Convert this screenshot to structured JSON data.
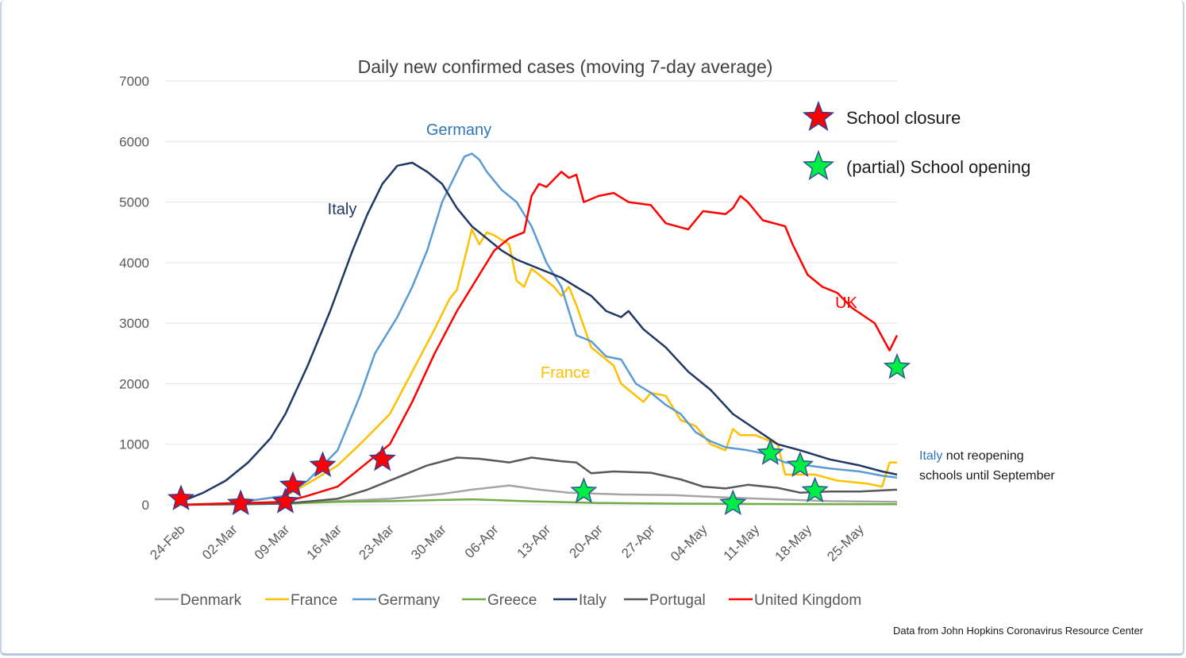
{
  "chart_data": {
    "type": "line",
    "title": "Daily new confirmed cases (moving 7-day average)",
    "ylim": [
      0,
      7000
    ],
    "yticks": [
      0,
      1000,
      2000,
      3000,
      4000,
      5000,
      6000,
      7000
    ],
    "x_start": "24-Feb",
    "x_end": "30-May",
    "xticks": [
      "24-Feb",
      "02-Mar",
      "09-Mar",
      "16-Mar",
      "23-Mar",
      "30-Mar",
      "06-Apr",
      "13-Apr",
      "20-Apr",
      "27-Apr",
      "04-May",
      "11-May",
      "18-May",
      "25-May"
    ],
    "grid": true,
    "legend_position": "bottom",
    "series": [
      {
        "name": "Denmark",
        "color": "#a5a5a5",
        "points": [
          [
            "24-Feb",
            0
          ],
          [
            "09-Mar",
            20
          ],
          [
            "16-Mar",
            60
          ],
          [
            "23-Mar",
            100
          ],
          [
            "30-Mar",
            180
          ],
          [
            "03-Apr",
            250
          ],
          [
            "08-Apr",
            320
          ],
          [
            "12-Apr",
            250
          ],
          [
            "16-Apr",
            200
          ],
          [
            "23-Apr",
            170
          ],
          [
            "30-Apr",
            160
          ],
          [
            "07-May",
            120
          ],
          [
            "14-May",
            90
          ],
          [
            "21-May",
            60
          ],
          [
            "30-May",
            50
          ]
        ]
      },
      {
        "name": "France",
        "color": "#ffc000",
        "points": [
          [
            "24-Feb",
            0
          ],
          [
            "02-Mar",
            30
          ],
          [
            "09-Mar",
            150
          ],
          [
            "12-Mar",
            350
          ],
          [
            "16-Mar",
            650
          ],
          [
            "19-Mar",
            1000
          ],
          [
            "23-Mar",
            1500
          ],
          [
            "26-Mar",
            2200
          ],
          [
            "29-Mar",
            2900
          ],
          [
            "31-Mar",
            3400
          ],
          [
            "01-Apr",
            3550
          ],
          [
            "03-Apr",
            4550
          ],
          [
            "04-Apr",
            4300
          ],
          [
            "05-Apr",
            4500
          ],
          [
            "06-Apr",
            4450
          ],
          [
            "08-Apr",
            4300
          ],
          [
            "09-Apr",
            3700
          ],
          [
            "10-Apr",
            3600
          ],
          [
            "11-Apr",
            3900
          ],
          [
            "12-Apr",
            3800
          ],
          [
            "14-Apr",
            3600
          ],
          [
            "15-Apr",
            3450
          ],
          [
            "16-Apr",
            3600
          ],
          [
            "17-Apr",
            3300
          ],
          [
            "19-Apr",
            2600
          ],
          [
            "22-Apr",
            2300
          ],
          [
            "23-Apr",
            2000
          ],
          [
            "25-Apr",
            1800
          ],
          [
            "26-Apr",
            1700
          ],
          [
            "27-Apr",
            1850
          ],
          [
            "29-Apr",
            1800
          ],
          [
            "01-May",
            1400
          ],
          [
            "03-May",
            1300
          ],
          [
            "05-May",
            1000
          ],
          [
            "07-May",
            900
          ],
          [
            "08-May",
            1250
          ],
          [
            "09-May",
            1150
          ],
          [
            "11-May",
            1150
          ],
          [
            "12-May",
            1100
          ],
          [
            "14-May",
            1000
          ],
          [
            "15-May",
            500
          ],
          [
            "16-May",
            500
          ],
          [
            "19-May",
            500
          ],
          [
            "22-May",
            400
          ],
          [
            "26-May",
            350
          ],
          [
            "28-May",
            300
          ],
          [
            "29-May",
            700
          ],
          [
            "30-May",
            700
          ]
        ]
      },
      {
        "name": "Germany",
        "color": "#5b9bd5",
        "points": [
          [
            "24-Feb",
            0
          ],
          [
            "02-Mar",
            30
          ],
          [
            "09-Mar",
            150
          ],
          [
            "12-Mar",
            400
          ],
          [
            "16-Mar",
            900
          ],
          [
            "19-Mar",
            1800
          ],
          [
            "21-Mar",
            2500
          ],
          [
            "24-Mar",
            3100
          ],
          [
            "26-Mar",
            3600
          ],
          [
            "28-Mar",
            4200
          ],
          [
            "30-Mar",
            5000
          ],
          [
            "01-Apr",
            5500
          ],
          [
            "02-Apr",
            5750
          ],
          [
            "03-Apr",
            5800
          ],
          [
            "04-Apr",
            5700
          ],
          [
            "05-Apr",
            5500
          ],
          [
            "07-Apr",
            5200
          ],
          [
            "09-Apr",
            5000
          ],
          [
            "11-Apr",
            4600
          ],
          [
            "13-Apr",
            4000
          ],
          [
            "15-Apr",
            3600
          ],
          [
            "17-Apr",
            2800
          ],
          [
            "19-Apr",
            2700
          ],
          [
            "21-Apr",
            2450
          ],
          [
            "23-Apr",
            2400
          ],
          [
            "25-Apr",
            2000
          ],
          [
            "27-Apr",
            1850
          ],
          [
            "29-Apr",
            1650
          ],
          [
            "01-May",
            1500
          ],
          [
            "03-May",
            1200
          ],
          [
            "05-May",
            1050
          ],
          [
            "07-May",
            950
          ],
          [
            "10-May",
            900
          ],
          [
            "12-May",
            850
          ],
          [
            "15-May",
            700
          ],
          [
            "18-May",
            650
          ],
          [
            "21-May",
            600
          ],
          [
            "25-May",
            550
          ],
          [
            "28-May",
            480
          ],
          [
            "30-May",
            450
          ]
        ]
      },
      {
        "name": "Greece",
        "color": "#70ad47",
        "points": [
          [
            "24-Feb",
            0
          ],
          [
            "09-Mar",
            20
          ],
          [
            "16-Mar",
            50
          ],
          [
            "23-Mar",
            60
          ],
          [
            "30-Mar",
            80
          ],
          [
            "03-Apr",
            90
          ],
          [
            "10-Apr",
            60
          ],
          [
            "20-Apr",
            30
          ],
          [
            "30-Apr",
            20
          ],
          [
            "10-May",
            15
          ],
          [
            "20-May",
            10
          ],
          [
            "30-May",
            10
          ]
        ]
      },
      {
        "name": "Italy",
        "color": "#203864",
        "points": [
          [
            "24-Feb",
            50
          ],
          [
            "27-Feb",
            200
          ],
          [
            "01-Mar",
            400
          ],
          [
            "04-Mar",
            700
          ],
          [
            "07-Mar",
            1100
          ],
          [
            "09-Mar",
            1500
          ],
          [
            "12-Mar",
            2300
          ],
          [
            "15-Mar",
            3200
          ],
          [
            "18-Mar",
            4200
          ],
          [
            "20-Mar",
            4800
          ],
          [
            "22-Mar",
            5300
          ],
          [
            "24-Mar",
            5600
          ],
          [
            "26-Mar",
            5650
          ],
          [
            "28-Mar",
            5500
          ],
          [
            "30-Mar",
            5300
          ],
          [
            "01-Apr",
            4900
          ],
          [
            "03-Apr",
            4600
          ],
          [
            "05-Apr",
            4400
          ],
          [
            "07-Apr",
            4200
          ],
          [
            "09-Apr",
            4050
          ],
          [
            "12-Apr",
            3900
          ],
          [
            "15-Apr",
            3750
          ],
          [
            "17-Apr",
            3600
          ],
          [
            "19-Apr",
            3450
          ],
          [
            "21-Apr",
            3200
          ],
          [
            "23-Apr",
            3100
          ],
          [
            "24-Apr",
            3200
          ],
          [
            "26-Apr",
            2900
          ],
          [
            "29-Apr",
            2600
          ],
          [
            "02-May",
            2200
          ],
          [
            "05-May",
            1900
          ],
          [
            "08-May",
            1500
          ],
          [
            "11-May",
            1250
          ],
          [
            "14-May",
            1000
          ],
          [
            "17-May",
            900
          ],
          [
            "21-May",
            750
          ],
          [
            "25-May",
            650
          ],
          [
            "28-May",
            550
          ],
          [
            "30-May",
            500
          ]
        ]
      },
      {
        "name": "Portugal",
        "color": "#595959",
        "points": [
          [
            "24-Feb",
            0
          ],
          [
            "09-Mar",
            20
          ],
          [
            "16-Mar",
            100
          ],
          [
            "20-Mar",
            250
          ],
          [
            "24-Mar",
            450
          ],
          [
            "28-Mar",
            650
          ],
          [
            "01-Apr",
            780
          ],
          [
            "04-Apr",
            760
          ],
          [
            "08-Apr",
            700
          ],
          [
            "11-Apr",
            780
          ],
          [
            "15-Apr",
            720
          ],
          [
            "17-Apr",
            700
          ],
          [
            "19-Apr",
            520
          ],
          [
            "22-Apr",
            550
          ],
          [
            "27-Apr",
            530
          ],
          [
            "01-May",
            420
          ],
          [
            "04-May",
            300
          ],
          [
            "07-May",
            270
          ],
          [
            "10-May",
            330
          ],
          [
            "14-May",
            280
          ],
          [
            "17-May",
            200
          ],
          [
            "21-May",
            220
          ],
          [
            "25-May",
            220
          ],
          [
            "30-May",
            250
          ]
        ]
      },
      {
        "name": "United Kingdom",
        "color": "#ff0000",
        "points": [
          [
            "24-Feb",
            0
          ],
          [
            "09-Mar",
            50
          ],
          [
            "12-Mar",
            150
          ],
          [
            "16-Mar",
            300
          ],
          [
            "19-Mar",
            600
          ],
          [
            "23-Mar",
            1000
          ],
          [
            "26-Mar",
            1700
          ],
          [
            "29-Mar",
            2500
          ],
          [
            "01-Apr",
            3200
          ],
          [
            "04-Apr",
            3800
          ],
          [
            "06-Apr",
            4200
          ],
          [
            "08-Apr",
            4400
          ],
          [
            "10-Apr",
            4500
          ],
          [
            "11-Apr",
            5100
          ],
          [
            "12-Apr",
            5300
          ],
          [
            "13-Apr",
            5250
          ],
          [
            "15-Apr",
            5500
          ],
          [
            "16-Apr",
            5400
          ],
          [
            "17-Apr",
            5450
          ],
          [
            "18-Apr",
            5000
          ],
          [
            "20-Apr",
            5100
          ],
          [
            "22-Apr",
            5150
          ],
          [
            "24-Apr",
            5000
          ],
          [
            "27-Apr",
            4950
          ],
          [
            "29-Apr",
            4650
          ],
          [
            "02-May",
            4550
          ],
          [
            "04-May",
            4850
          ],
          [
            "07-May",
            4800
          ],
          [
            "08-May",
            4900
          ],
          [
            "09-May",
            5100
          ],
          [
            "10-May",
            5000
          ],
          [
            "12-May",
            4700
          ],
          [
            "15-May",
            4600
          ],
          [
            "16-May",
            4300
          ],
          [
            "18-May",
            3800
          ],
          [
            "20-May",
            3600
          ],
          [
            "22-May",
            3500
          ],
          [
            "24-May",
            3250
          ],
          [
            "27-May",
            3000
          ],
          [
            "29-May",
            2550
          ],
          [
            "30-May",
            2800
          ]
        ]
      }
    ],
    "annotations": {
      "series_labels": [
        {
          "text": "Germany",
          "color": "#2e75b6"
        },
        {
          "text": "Italy",
          "color": "#203864"
        },
        {
          "text": "France",
          "color": "#ffc000"
        },
        {
          "text": "UK",
          "color": "#ff0000"
        }
      ],
      "school_closure_markers": [
        [
          "24-Feb",
          100
        ],
        [
          "03-Mar",
          20
        ],
        [
          "09-Mar",
          50
        ],
        [
          "10-Mar",
          320
        ],
        [
          "14-Mar",
          650
        ],
        [
          "22-Mar",
          750
        ]
      ],
      "school_opening_markers": [
        [
          "18-Apr",
          220
        ],
        [
          "08-May",
          20
        ],
        [
          "13-May",
          850
        ],
        [
          "17-May",
          650
        ],
        [
          "19-May",
          230
        ],
        [
          "30-May",
          2270
        ]
      ],
      "star_legend": [
        {
          "label": "School closure",
          "color": "#ff0000"
        },
        {
          "label": "(partial) School opening",
          "color": "#00ee44"
        }
      ],
      "note": {
        "highlight": "Italy",
        "line1_rest": " not reopening",
        "line2": "schools until September"
      },
      "source": "Data from John Hopkins Coronavirus Resource Center"
    }
  }
}
